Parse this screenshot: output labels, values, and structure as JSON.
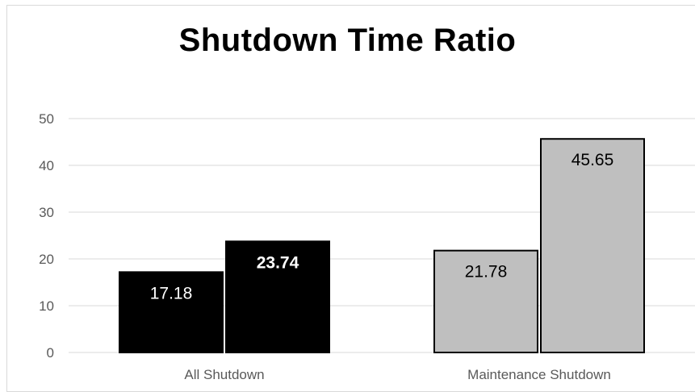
{
  "chart_data": {
    "type": "bar",
    "title": "Shutdown Time Ratio",
    "categories": [
      "All Shutdown",
      "Maintenance Shutdown"
    ],
    "bars": [
      {
        "category": "All Shutdown",
        "value": 17.18,
        "label": "17.18",
        "fill": "#000000",
        "label_color": "#ffffff",
        "label_weight": "normal"
      },
      {
        "category": "All Shutdown",
        "value": 23.74,
        "label": "23.74",
        "fill": "#000000",
        "label_color": "#ffffff",
        "label_weight": "bold"
      },
      {
        "category": "Maintenance Shutdown",
        "value": 21.78,
        "label": "21.78",
        "fill": "#bfbfbf",
        "label_color": "#000000",
        "label_weight": "normal"
      },
      {
        "category": "Maintenance Shutdown",
        "value": 45.65,
        "label": "45.65",
        "fill": "#bfbfbf",
        "label_color": "#000000",
        "label_weight": "normal"
      }
    ],
    "ylim": [
      0,
      50
    ],
    "yticks": [
      "0",
      "10",
      "20",
      "30",
      "40",
      "50"
    ],
    "grid": true,
    "colors": {
      "grid": "#d9d9d9",
      "axis_text": "#595959",
      "bar_edge": "#000000"
    }
  }
}
